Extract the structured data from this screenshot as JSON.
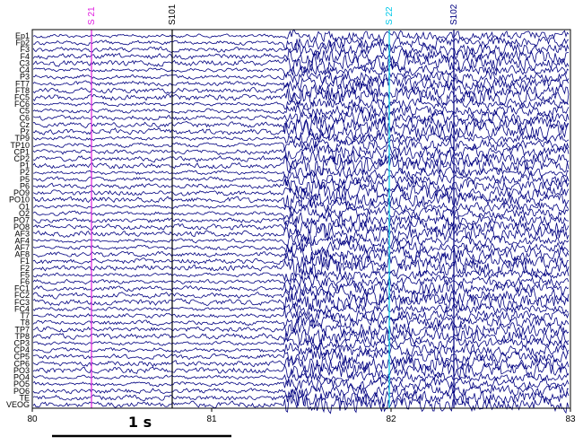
{
  "chart_data": {
    "type": "line",
    "title": "",
    "xlabel": "",
    "ylabel": "",
    "xlim": [
      80,
      83
    ],
    "x_ticks": [
      "80",
      "81",
      "82",
      "83"
    ],
    "grid": false,
    "trace_color": "#000080",
    "channels": [
      "Ep1",
      "Fp2",
      "F3",
      "F4",
      "C3",
      "C4",
      "P3",
      "FT7",
      "FT8",
      "FC5",
      "FC6",
      "C5",
      "C6",
      "Cz",
      "Pz",
      "TP9",
      "TP10",
      "CP1",
      "CP2",
      "P1",
      "P2",
      "P5",
      "P6",
      "PO9",
      "PO10",
      "O1",
      "O2",
      "PO7",
      "PO8",
      "AF3",
      "AF4",
      "AF7",
      "AF8",
      "F1",
      "F2",
      "F5",
      "F6",
      "FC1",
      "FC2",
      "FC3",
      "FC4",
      "T7",
      "T8",
      "TP7",
      "TP8",
      "CP3",
      "CP4",
      "CP5",
      "CP6",
      "PO3",
      "PO4",
      "PO5",
      "PO6",
      "TE",
      "VEOG"
    ],
    "visible_channel_labels": [
      "Ep1",
      "Fp2",
      "F3",
      "F4",
      "C3",
      "C4",
      "P3",
      "FT7",
      "FT8",
      "FC5",
      "FC6",
      "C5",
      "C6",
      "Cz",
      "Pz",
      "TP9",
      "TP10",
      "CP1",
      "CP2",
      "P1",
      "P2",
      "P5",
      "P6",
      "PO9",
      "PO10",
      "O1",
      "O2",
      "PO7",
      "PO8",
      "AF3",
      "AF4",
      "AF7",
      "AF8",
      "F1",
      "F2",
      "F5",
      "F6",
      "FC1",
      "FC2",
      "FC3",
      "FC4",
      "T7",
      "T8",
      "TP7",
      "TP8",
      "CP3",
      "CP4",
      "CP5",
      "CP6",
      "PO3",
      "PO4",
      "PO5",
      "PO6",
      "TE",
      "VEOG"
    ],
    "events": [
      {
        "label": "S 21",
        "time": 80.33,
        "color": "#e020e0"
      },
      {
        "label": "S101",
        "time": 80.78,
        "color": "#000000"
      },
      {
        "label": "S 22",
        "time": 81.99,
        "color": "#00c8e8"
      },
      {
        "label": "S102",
        "time": 82.35,
        "color": "#000080"
      }
    ],
    "high_activity_onset": 81.4,
    "scale_bar": {
      "label": "1 s",
      "duration_s": 1
    }
  }
}
